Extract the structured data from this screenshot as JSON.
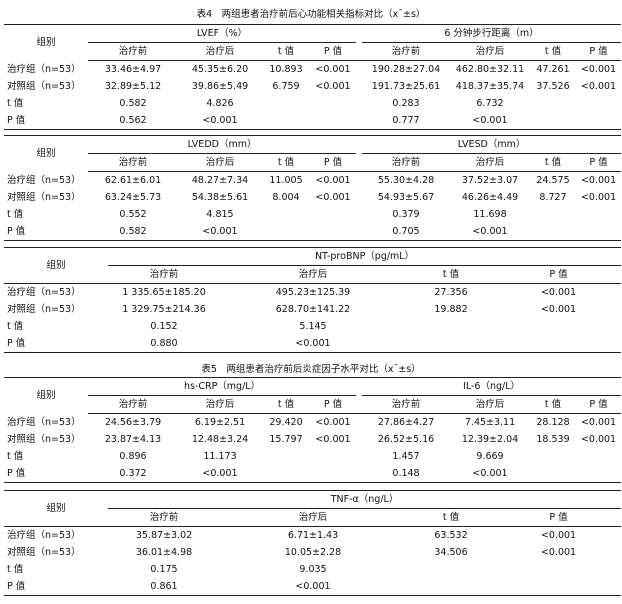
{
  "table4": {
    "caption": "表4　两组患者治疗前后心功能相关指标对比（x¯±s）",
    "group_header": "组别",
    "block1": {
      "measure1": "LVEF（%）",
      "measure2": "6 分钟步行距离（m）",
      "columns": [
        "治疗前",
        "治疗后",
        "t 值",
        "P 值",
        "治疗前",
        "治疗后",
        "t 值",
        "P 值"
      ],
      "rows": [
        [
          "治疗组（n=53）",
          "33.46±4.97",
          "45.35±6.20",
          "10.893",
          "<0.001",
          "190.28±27.04",
          "462.80±32.11",
          "47.261",
          "<0.001"
        ],
        [
          "对照组（n=53）",
          "32.89±5.12",
          "39.86±5.49",
          "6.759",
          "<0.001",
          "191.73±25.61",
          "418.37±35.74",
          "37.526",
          "<0.001"
        ],
        [
          "t 值",
          "0.582",
          "4.826",
          "",
          "",
          "0.283",
          "6.732",
          "",
          ""
        ],
        [
          "P 值",
          "0.562",
          "<0.001",
          "",
          "",
          "0.777",
          "<0.001",
          "",
          ""
        ]
      ]
    },
    "block2": {
      "measure1": "LVEDD（mm）",
      "measure2": "LVESD（mm）",
      "columns": [
        "治疗前",
        "治疗后",
        "t 值",
        "P 值",
        "治疗前",
        "治疗后",
        "t 值",
        "P 值"
      ],
      "rows": [
        [
          "治疗组（n=53）",
          "62.61±6.01",
          "48.27±7.34",
          "11.005",
          "<0.001",
          "55.30±4.28",
          "37.52±3.07",
          "24.575",
          "<0.001"
        ],
        [
          "对照组（n=53）",
          "63.24±5.73",
          "54.38±5.61",
          "8.004",
          "<0.001",
          "54.93±5.67",
          "46.26±4.49",
          "8.727",
          "<0.001"
        ],
        [
          "t 值",
          "0.552",
          "4.815",
          "",
          "",
          "0.379",
          "11.698",
          "",
          ""
        ],
        [
          "P 值",
          "0.582",
          "<0.001",
          "",
          "",
          "0.705",
          "<0.001",
          "",
          ""
        ]
      ]
    },
    "block3": {
      "measure": "NT-proBNP（pg/mL）",
      "columns": [
        "治疗前",
        "治疗后",
        "t 值",
        "P 值"
      ],
      "rows": [
        [
          "治疗组（n=53）",
          "1 335.65±185.20",
          "495.23±125.39",
          "27.356",
          "<0.001"
        ],
        [
          "对照组（n=53）",
          "1 329.75±214.36",
          "628.70±141.22",
          "19.882",
          "<0.001"
        ],
        [
          "t 值",
          "0.152",
          "5.145",
          "",
          ""
        ],
        [
          "P 值",
          "0.880",
          "<0.001",
          "",
          ""
        ]
      ]
    }
  },
  "table5": {
    "caption": "表5　两组患者治疗前后炎症因子水平对比（x¯±s）",
    "group_header": "组别",
    "block1": {
      "measure1": "hs-CRP（mg/L）",
      "measure2": "IL-6（ng/L）",
      "columns": [
        "治疗前",
        "治疗后",
        "t 值",
        "P 值",
        "治疗前",
        "治疗后",
        "t 值",
        "P 值"
      ],
      "rows": [
        [
          "治疗组（n=53）",
          "24.56±3.79",
          "6.19±2.51",
          "29.420",
          "<0.001",
          "27.86±4.27",
          "7.45±3.11",
          "28.128",
          "<0.001"
        ],
        [
          "对照组（n=53）",
          "23.87±4.13",
          "12.48±3.24",
          "15.797",
          "<0.001",
          "26.52±5.16",
          "12.39±2.04",
          "18.539",
          "<0.001"
        ],
        [
          "t 值",
          "0.896",
          "11.173",
          "",
          "",
          "1.457",
          "9.669",
          "",
          ""
        ],
        [
          "P 值",
          "0.372",
          "<0.001",
          "",
          "",
          "0.148",
          "<0.001",
          "",
          ""
        ]
      ]
    },
    "block2": {
      "measure": "TNF-α（ng/L）",
      "columns": [
        "治疗前",
        "治疗后",
        "t 值",
        "P 值"
      ],
      "rows": [
        [
          "治疗组（n=53）",
          "35.87±3.02",
          "6.71±1.43",
          "63.532",
          "<0.001"
        ],
        [
          "对照组（n=53）",
          "36.01±4.98",
          "10.05±2.28",
          "34.506",
          "<0.001"
        ],
        [
          "t 值",
          "0.175",
          "9.035",
          "",
          ""
        ],
        [
          "P 值",
          "0.861",
          "<0.001",
          "",
          ""
        ]
      ]
    }
  }
}
